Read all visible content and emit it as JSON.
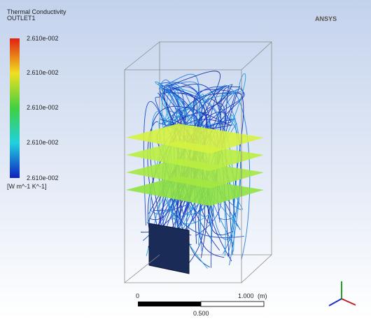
{
  "legend": {
    "title": "Thermal Conductivity",
    "subtitle": "OUTLET1",
    "labels": [
      "2.610e-002",
      "2.610e-002",
      "2.610e-002",
      "2.610e-002",
      "2.610e-002"
    ],
    "unit": "[W m^-1 K^-1]"
  },
  "logo": "ANSYS",
  "scale_bar": {
    "start": "0",
    "end": "1.000",
    "unit": "(m)",
    "mid": "0.500"
  }
}
